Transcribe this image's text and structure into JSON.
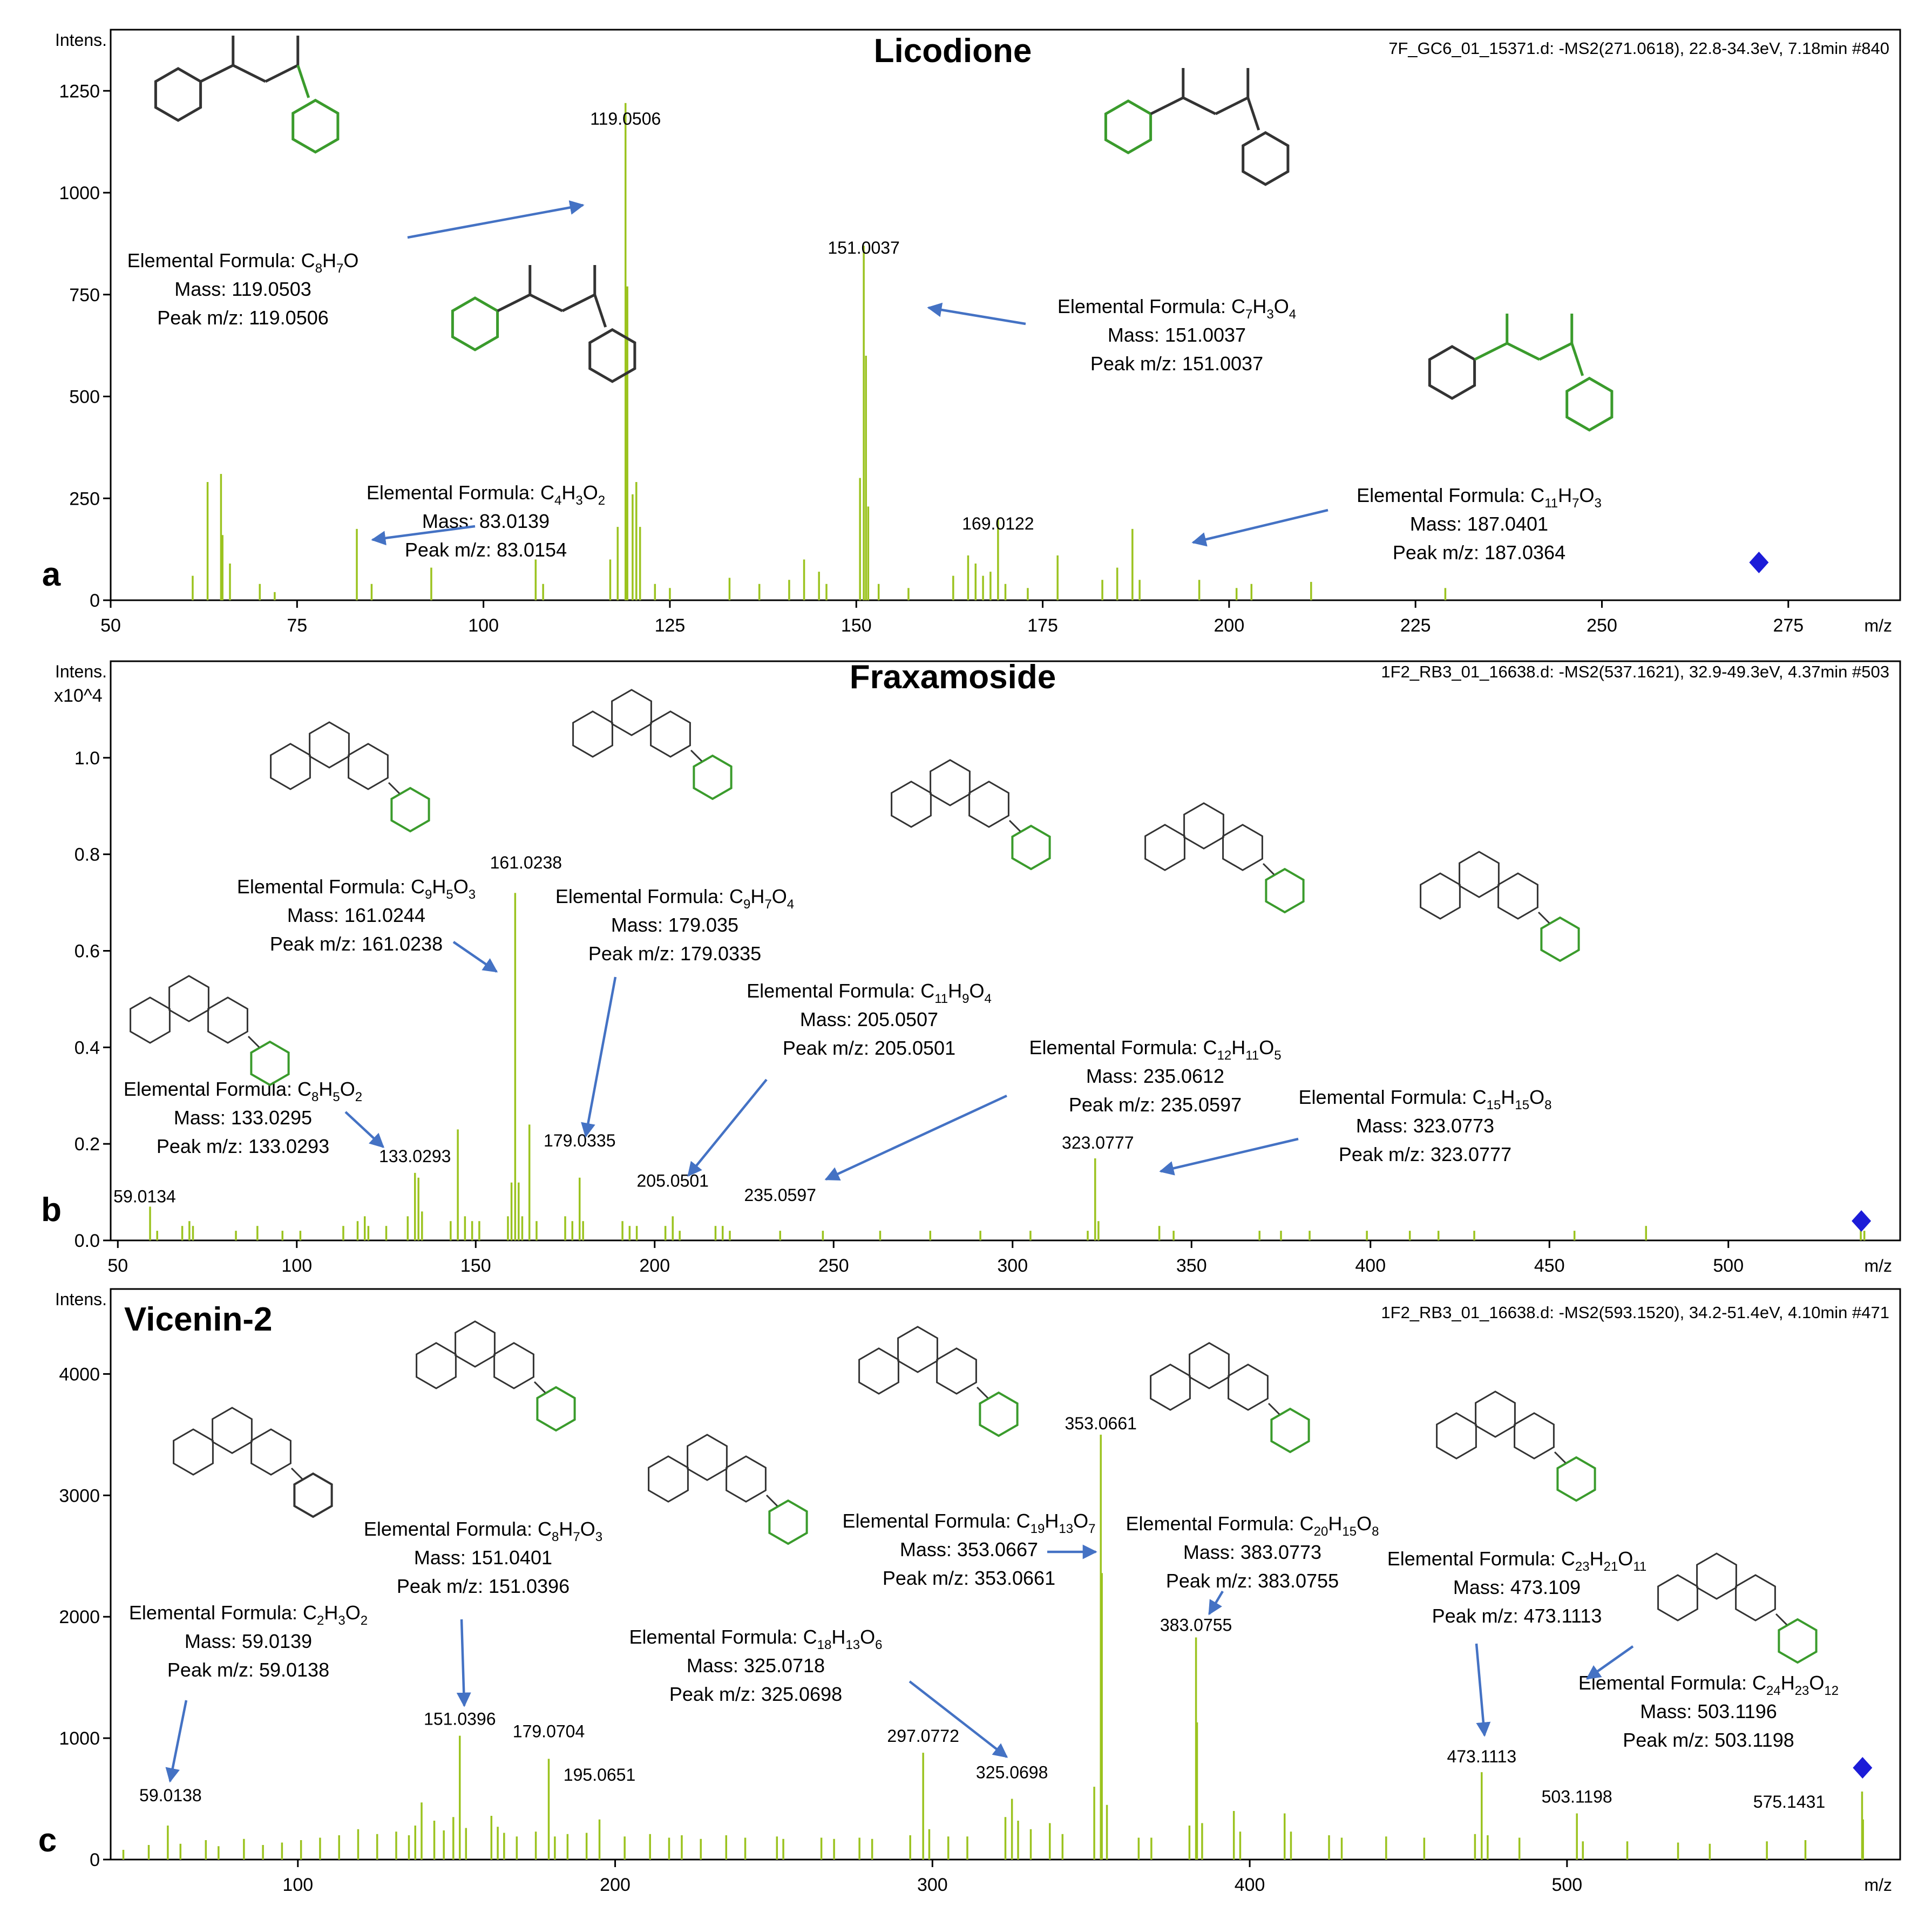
{
  "chart_data": [
    {
      "panel": "a",
      "type": "bar",
      "title": "Licodione",
      "header": "7F_GC6_01_15371.d: -MS2(271.0618), 22.8-34.3eV, 7.18min #840",
      "xlabel": "m/z",
      "ylabel": "Intens.",
      "y_multiplier": "",
      "xlim": [
        50,
        290
      ],
      "ylim": [
        0,
        1400
      ],
      "xticks": [
        50,
        75,
        100,
        125,
        150,
        175,
        200,
        225,
        250,
        275
      ],
      "yticks": [
        0,
        250,
        500,
        750,
        1000,
        1250
      ],
      "ytick_labels": [
        "0",
        "250",
        "500",
        "750",
        "1000",
        "1250"
      ],
      "precursor_mz": 271.06,
      "peaks": [
        [
          61,
          60
        ],
        [
          63,
          290
        ],
        [
          64.8,
          310
        ],
        [
          65,
          160
        ],
        [
          66,
          90
        ],
        [
          70,
          40
        ],
        [
          72,
          20
        ],
        [
          83.0154,
          175
        ],
        [
          85,
          40
        ],
        [
          93,
          80
        ],
        [
          107,
          100
        ],
        [
          108,
          40
        ],
        [
          117,
          100
        ],
        [
          118,
          180
        ],
        [
          119.0506,
          1220
        ],
        [
          119.3,
          770
        ],
        [
          120,
          260
        ],
        [
          120.5,
          290
        ],
        [
          121,
          180
        ],
        [
          123,
          40
        ],
        [
          125,
          30
        ],
        [
          133,
          55
        ],
        [
          137,
          40
        ],
        [
          141,
          50
        ],
        [
          143,
          100
        ],
        [
          145,
          70
        ],
        [
          146,
          40
        ],
        [
          150.5,
          300
        ],
        [
          151.0037,
          870
        ],
        [
          151.3,
          600
        ],
        [
          151.6,
          230
        ],
        [
          153,
          40
        ],
        [
          157,
          30
        ],
        [
          163,
          60
        ],
        [
          165,
          110
        ],
        [
          166,
          90
        ],
        [
          167,
          60
        ],
        [
          168,
          70
        ],
        [
          169.0122,
          200
        ],
        [
          170,
          40
        ],
        [
          173,
          30
        ],
        [
          177,
          110
        ],
        [
          183,
          50
        ],
        [
          185,
          80
        ],
        [
          187.0364,
          175
        ],
        [
          188,
          50
        ],
        [
          196,
          50
        ],
        [
          201,
          30
        ],
        [
          203,
          40
        ],
        [
          211,
          45
        ],
        [
          229,
          30
        ]
      ],
      "peak_labels": [
        {
          "mz": 119.0506,
          "label": "119.0506"
        },
        {
          "mz": 151.0037,
          "label": "151.0037"
        },
        {
          "mz": 169.0122,
          "label": "169.0122"
        }
      ],
      "fragments": [
        {
          "formula": [
            "Elemental Formula: C",
            "8",
            "H",
            "7",
            "O"
          ],
          "mass": "Mass: 119.0503",
          "peak": "Peak m/z: 119.0506"
        },
        {
          "formula": [
            "Elemental Formula: C",
            "4",
            "H",
            "3",
            "O",
            "2"
          ],
          "mass": "Mass: 83.0139",
          "peak": "Peak m/z: 83.0154"
        },
        {
          "formula": [
            "Elemental Formula: C",
            "7",
            "H",
            "3",
            "O",
            "4"
          ],
          "mass": "Mass: 151.0037",
          "peak": "Peak m/z: 151.0037"
        },
        {
          "formula": [
            "Elemental Formula: C",
            "11",
            "H",
            "7",
            "O",
            "3"
          ],
          "mass": "Mass: 187.0401",
          "peak": "Peak m/z: 187.0364"
        }
      ]
    },
    {
      "panel": "b",
      "type": "bar",
      "title": "Fraxamoside",
      "header": "1F2_RB3_01_16638.d: -MS2(537.1621), 32.9-49.3eV, 4.37min #503",
      "xlabel": "m/z",
      "ylabel": "Intens.",
      "y_multiplier": "x10^4",
      "xlim": [
        48,
        548
      ],
      "ylim": [
        0,
        1.2
      ],
      "xticks": [
        50,
        100,
        150,
        200,
        250,
        300,
        350,
        400,
        450,
        500
      ],
      "yticks": [
        0,
        0.2,
        0.4,
        0.6,
        0.8,
        1.0
      ],
      "ytick_labels": [
        "0.0",
        "0.2",
        "0.4",
        "0.6",
        "0.8",
        "1.0"
      ],
      "precursor_mz": 537.16,
      "peaks": [
        [
          59.0134,
          0.07
        ],
        [
          61,
          0.02
        ],
        [
          68,
          0.03
        ],
        [
          70,
          0.04
        ],
        [
          71,
          0.03
        ],
        [
          83,
          0.02
        ],
        [
          89,
          0.03
        ],
        [
          96,
          0.02
        ],
        [
          101,
          0.02
        ],
        [
          113,
          0.03
        ],
        [
          117,
          0.04
        ],
        [
          119,
          0.05
        ],
        [
          120,
          0.03
        ],
        [
          125,
          0.03
        ],
        [
          131,
          0.05
        ],
        [
          133.0293,
          0.14
        ],
        [
          134,
          0.13
        ],
        [
          135,
          0.06
        ],
        [
          143,
          0.04
        ],
        [
          145,
          0.23
        ],
        [
          147,
          0.05
        ],
        [
          149,
          0.04
        ],
        [
          151,
          0.04
        ],
        [
          159,
          0.05
        ],
        [
          160,
          0.12
        ],
        [
          161.0238,
          0.72
        ],
        [
          162,
          0.12
        ],
        [
          163,
          0.05
        ],
        [
          165,
          0.24
        ],
        [
          167,
          0.04
        ],
        [
          175,
          0.05
        ],
        [
          177,
          0.04
        ],
        [
          179.0335,
          0.13
        ],
        [
          180,
          0.04
        ],
        [
          191,
          0.04
        ],
        [
          193,
          0.03
        ],
        [
          195,
          0.03
        ],
        [
          203,
          0.03
        ],
        [
          205.0501,
          0.05
        ],
        [
          207,
          0.02
        ],
        [
          217,
          0.03
        ],
        [
          219,
          0.03
        ],
        [
          221,
          0.02
        ],
        [
          235.0597,
          0.02
        ],
        [
          247,
          0.02
        ],
        [
          263,
          0.02
        ],
        [
          277,
          0.02
        ],
        [
          291,
          0.02
        ],
        [
          305,
          0.02
        ],
        [
          321,
          0.02
        ],
        [
          323.0777,
          0.17
        ],
        [
          324,
          0.04
        ],
        [
          341,
          0.03
        ],
        [
          345,
          0.02
        ],
        [
          369,
          0.02
        ],
        [
          375,
          0.02
        ],
        [
          383,
          0.02
        ],
        [
          399,
          0.02
        ],
        [
          411,
          0.02
        ],
        [
          419,
          0.02
        ],
        [
          429,
          0.02
        ],
        [
          457,
          0.02
        ],
        [
          477,
          0.03
        ],
        [
          537,
          0.03
        ],
        [
          538,
          0.02
        ]
      ],
      "peak_labels": [
        {
          "mz": 59.0134,
          "label": "59.0134"
        },
        {
          "mz": 133.0293,
          "label": "133.0293"
        },
        {
          "mz": 161.0238,
          "label": "161.0238"
        },
        {
          "mz": 179.0335,
          "label": "179.0335"
        },
        {
          "mz": 205.0501,
          "label": "205.0501"
        },
        {
          "mz": 235.0597,
          "label": "235.0597"
        },
        {
          "mz": 323.0777,
          "label": "323.0777"
        }
      ],
      "fragments": [
        {
          "formula": [
            "Elemental Formula: C",
            "9",
            "H",
            "5",
            "O",
            "3"
          ],
          "mass": "Mass: 161.0244",
          "peak": "Peak m/z: 161.0238"
        },
        {
          "formula": [
            "Elemental Formula: C",
            "9",
            "H",
            "7",
            "O",
            "4"
          ],
          "mass": "Mass: 179.035",
          "peak": "Peak m/z: 179.0335"
        },
        {
          "formula": [
            "Elemental Formula: C",
            "11",
            "H",
            "9",
            "O",
            "4"
          ],
          "mass": "Mass: 205.0507",
          "peak": "Peak m/z: 205.0501"
        },
        {
          "formula": [
            "Elemental Formula: C",
            "12",
            "H",
            "11",
            "O",
            "5"
          ],
          "mass": "Mass: 235.0612",
          "peak": "Peak m/z: 235.0597"
        },
        {
          "formula": [
            "Elemental Formula: C",
            "15",
            "H",
            "15",
            "O",
            "8"
          ],
          "mass": "Mass: 323.0773",
          "peak": "Peak m/z: 323.0777"
        },
        {
          "formula": [
            "Elemental Formula: C",
            "8",
            "H",
            "5",
            "O",
            "2"
          ],
          "mass": "Mass: 133.0295",
          "peak": "Peak m/z: 133.0293"
        }
      ]
    },
    {
      "panel": "c",
      "type": "bar",
      "title": "Vicenin-2",
      "header": "1F2_RB3_01_16638.d: -MS2(593.1520), 34.2-51.4eV, 4.10min #471",
      "xlabel": "m/z",
      "ylabel": "Intens.",
      "y_multiplier": "",
      "xlim": [
        41,
        605
      ],
      "ylim": [
        0,
        4700
      ],
      "xticks": [
        100,
        200,
        300,
        400,
        500
      ],
      "yticks": [
        0,
        1000,
        2000,
        3000,
        4000
      ],
      "ytick_labels": [
        "0",
        "1000",
        "2000",
        "3000",
        "4000"
      ],
      "precursor_mz": 593.15,
      "peaks": [
        [
          45,
          80
        ],
        [
          53,
          120
        ],
        [
          59.0138,
          280
        ],
        [
          63,
          130
        ],
        [
          71,
          160
        ],
        [
          75,
          110
        ],
        [
          83,
          170
        ],
        [
          89,
          120
        ],
        [
          95,
          140
        ],
        [
          101,
          160
        ],
        [
          107,
          180
        ],
        [
          113,
          200
        ],
        [
          119,
          250
        ],
        [
          125,
          210
        ],
        [
          131,
          230
        ],
        [
          135,
          200
        ],
        [
          137,
          280
        ],
        [
          139,
          470
        ],
        [
          143,
          320
        ],
        [
          146,
          240
        ],
        [
          149,
          350
        ],
        [
          151.0396,
          1020
        ],
        [
          153,
          260
        ],
        [
          161,
          360
        ],
        [
          163,
          270
        ],
        [
          165,
          220
        ],
        [
          169,
          190
        ],
        [
          175,
          230
        ],
        [
          179.0704,
          830
        ],
        [
          181,
          190
        ],
        [
          185,
          210
        ],
        [
          191,
          220
        ],
        [
          195.0651,
          330
        ],
        [
          203,
          190
        ],
        [
          211,
          210
        ],
        [
          217,
          180
        ],
        [
          221,
          200
        ],
        [
          227,
          170
        ],
        [
          235,
          200
        ],
        [
          241,
          180
        ],
        [
          251,
          190
        ],
        [
          253,
          170
        ],
        [
          265,
          180
        ],
        [
          269,
          170
        ],
        [
          277,
          180
        ],
        [
          281,
          170
        ],
        [
          293,
          200
        ],
        [
          297.0772,
          880
        ],
        [
          299,
          250
        ],
        [
          305,
          190
        ],
        [
          311,
          190
        ],
        [
          323,
          350
        ],
        [
          325.0698,
          500
        ],
        [
          327,
          320
        ],
        [
          331,
          250
        ],
        [
          337,
          300
        ],
        [
          341,
          210
        ],
        [
          351,
          600
        ],
        [
          353.0661,
          3500
        ],
        [
          353.4,
          2360
        ],
        [
          355,
          450
        ],
        [
          365,
          180
        ],
        [
          369,
          180
        ],
        [
          381,
          280
        ],
        [
          383.0755,
          1830
        ],
        [
          383.4,
          1130
        ],
        [
          385,
          300
        ],
        [
          395,
          400
        ],
        [
          397,
          230
        ],
        [
          411,
          380
        ],
        [
          413,
          230
        ],
        [
          425,
          200
        ],
        [
          429,
          180
        ],
        [
          443,
          190
        ],
        [
          455,
          180
        ],
        [
          471,
          210
        ],
        [
          473.1113,
          720
        ],
        [
          475,
          200
        ],
        [
          485,
          180
        ],
        [
          503.1198,
          380
        ],
        [
          505,
          150
        ],
        [
          519,
          150
        ],
        [
          535,
          140
        ],
        [
          545,
          130
        ],
        [
          563,
          150
        ],
        [
          575.1431,
          160
        ],
        [
          593,
          560
        ],
        [
          593.3,
          330
        ]
      ],
      "peak_labels": [
        {
          "mz": 59.0138,
          "label": "59.0138"
        },
        {
          "mz": 151.0396,
          "label": "151.0396"
        },
        {
          "mz": 179.0704,
          "label": "179.0704"
        },
        {
          "mz": 195.0651,
          "label": "195.0651"
        },
        {
          "mz": 297.0772,
          "label": "297.0772"
        },
        {
          "mz": 325.0698,
          "label": "325.0698"
        },
        {
          "mz": 353.0661,
          "label": "353.0661"
        },
        {
          "mz": 383.0755,
          "label": "383.0755"
        },
        {
          "mz": 473.1113,
          "label": "473.1113"
        },
        {
          "mz": 503.1198,
          "label": "503.1198"
        },
        {
          "mz": 575.1431,
          "label": "575.1431"
        }
      ],
      "fragments": [
        {
          "formula": [
            "Elemental Formula: C",
            "2",
            "H",
            "3",
            "O",
            "2"
          ],
          "mass": "Mass: 59.0139",
          "peak": "Peak m/z: 59.0138"
        },
        {
          "formula": [
            "Elemental Formula: C",
            "8",
            "H",
            "7",
            "O",
            "3"
          ],
          "mass": "Mass: 151.0401",
          "peak": "Peak m/z: 151.0396"
        },
        {
          "formula": [
            "Elemental Formula: C",
            "18",
            "H",
            "13",
            "O",
            "6"
          ],
          "mass": "Mass: 325.0718",
          "peak": "Peak m/z: 325.0698"
        },
        {
          "formula": [
            "Elemental Formula: C",
            "19",
            "H",
            "13",
            "O",
            "7"
          ],
          "mass": "Mass: 353.0667",
          "peak": "Peak m/z: 353.0661"
        },
        {
          "formula": [
            "Elemental Formula: C",
            "20",
            "H",
            "15",
            "O",
            "8"
          ],
          "mass": "Mass: 383.0773",
          "peak": "Peak m/z: 383.0755"
        },
        {
          "formula": [
            "Elemental Formula: C",
            "23",
            "H",
            "21",
            "O",
            "11"
          ],
          "mass": "Mass: 473.109",
          "peak": "Peak m/z: 473.1113"
        },
        {
          "formula": [
            "Elemental Formula: C",
            "24",
            "H",
            "23",
            "O",
            "12"
          ],
          "mass": "Mass: 503.1196",
          "peak": "Peak m/z: 503.1198"
        }
      ]
    }
  ],
  "colors": {
    "peak": "#9bc31f",
    "arrow": "#4472c4",
    "fragment_green": "#3a9b2c",
    "structure_gray": "#333333",
    "precursor_marker": "#1c1cd8"
  }
}
